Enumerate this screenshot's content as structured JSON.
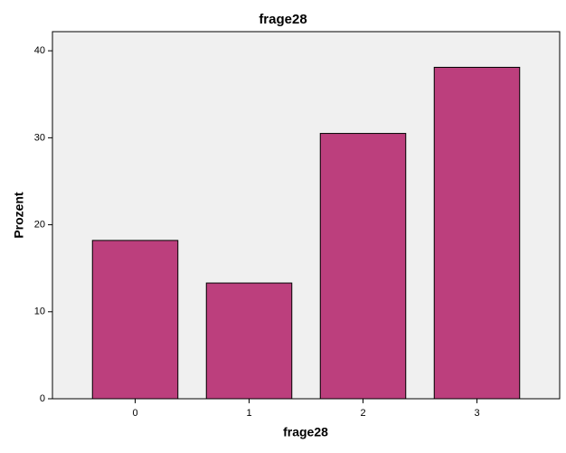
{
  "chart_data": {
    "type": "bar",
    "title": "frage28",
    "x_label": "frage28",
    "y_label": "Prozent",
    "categories": [
      "0",
      "1",
      "2",
      "3"
    ],
    "values": [
      18.2,
      13.3,
      30.5,
      38.1
    ],
    "color": "#bc3f7d",
    "ylim": [
      0,
      42.2
    ],
    "yticks": [
      0,
      10,
      20,
      30,
      40
    ],
    "grid": false
  }
}
